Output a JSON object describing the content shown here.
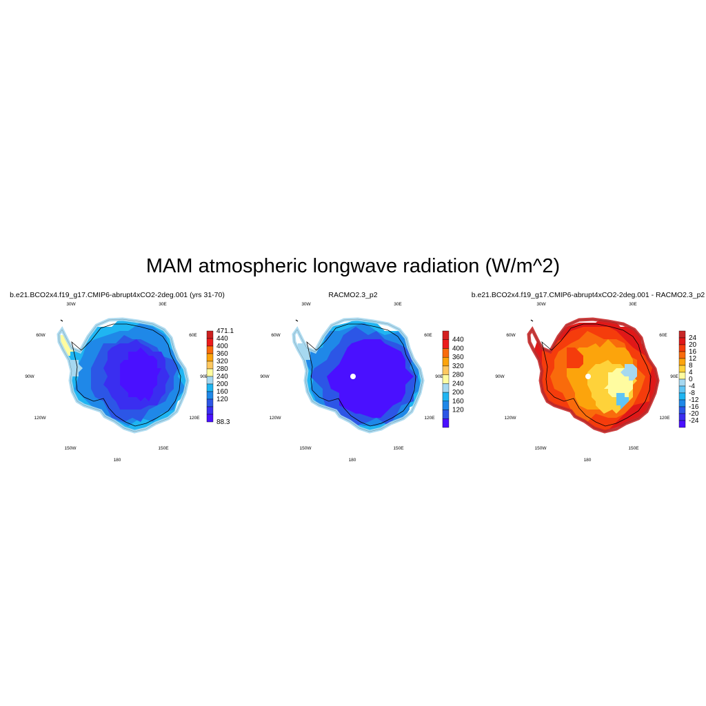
{
  "figure": {
    "title": "MAM atmospheric longwave radiation (W/m^2)"
  },
  "panels": [
    {
      "title": "b.e21.BCO2x4.f19_g17.CMIP6-abrupt4xCO2-2deg.001 (yrs 31-70)",
      "kind": "model",
      "has_pole_hole": false,
      "colorbar": {
        "labels": [
          "471.1",
          "440",
          "400",
          "360",
          "320",
          "280",
          "240",
          "200",
          "160",
          "120",
          "88.3"
        ],
        "colors": [
          "#cc2020",
          "#ec1c1c",
          "#f96b0c",
          "#fca40c",
          "#fec860",
          "#fffca0",
          "#a6d8f0",
          "#1fb5f2",
          "#1f88e8",
          "#2c56e6",
          "#3a2ef0",
          "#4a10ff"
        ]
      }
    },
    {
      "title": "RACMO2.3_p2",
      "kind": "obs",
      "has_pole_hole": true,
      "colorbar": {
        "labels": [
          "440",
          "400",
          "360",
          "320",
          "280",
          "240",
          "200",
          "160",
          "120"
        ],
        "colors": [
          "#d42020",
          "#ec1c1c",
          "#f96b0c",
          "#fca40c",
          "#fec860",
          "#fffca0",
          "#a6d8f0",
          "#1fb5f2",
          "#1f88e8",
          "#2c56e6",
          "#4a10ff"
        ]
      }
    },
    {
      "title": "b.e21.BCO2x4.f19_g17.CMIP6-abrupt4xCO2-2deg.001 - RACMO2.3_p2",
      "kind": "diff",
      "has_pole_hole": true,
      "colorbar": {
        "labels": [
          "24",
          "20",
          "16",
          "12",
          "8",
          "4",
          "0",
          "-4",
          "-8",
          "-12",
          "-16",
          "-20",
          "-24"
        ],
        "colors": [
          "#c82828",
          "#e01818",
          "#f53c0c",
          "#f96b0c",
          "#fca40c",
          "#fed23a",
          "#fffca0",
          "#a6d8f0",
          "#5fc4f4",
          "#1fb5f2",
          "#1f88e8",
          "#2c56e6",
          "#3a2ef0",
          "#4a10ff"
        ]
      }
    }
  ],
  "map_labels": {
    "lon_30w": "30W",
    "lon_30e": "30E",
    "lon_60w": "60W",
    "lon_60e": "60E",
    "lon_90w": "90W",
    "lon_90e": "90E",
    "lon_120w": "120W",
    "lon_120e": "120E",
    "lon_150w": "150W",
    "lon_150e": "150E",
    "lon_180": "180"
  }
}
